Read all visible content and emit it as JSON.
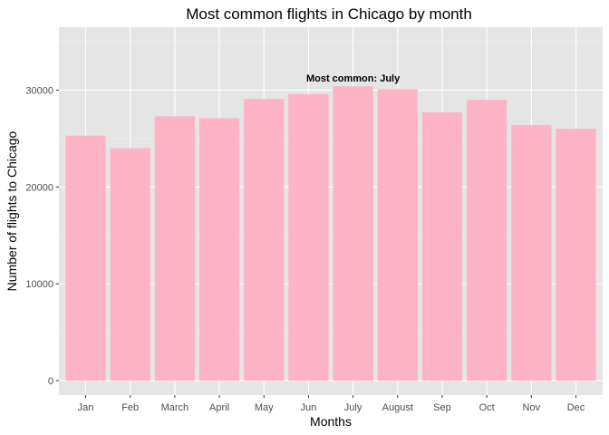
{
  "chart_data": {
    "type": "bar",
    "title": "Most common flights in Chicago by month",
    "xlabel": "Months",
    "ylabel": "Number of flights to Chicago",
    "categories": [
      "Jan",
      "Feb",
      "March",
      "April",
      "May",
      "Jun",
      "July",
      "August",
      "Sep",
      "Oct",
      "Nov",
      "Dec"
    ],
    "values": [
      25300,
      24000,
      27300,
      27100,
      29100,
      29600,
      30400,
      30100,
      27700,
      29000,
      26400,
      26000
    ],
    "ylim": [
      -1500,
      36500
    ],
    "yticks": [
      0,
      10000,
      20000,
      30000
    ],
    "ytick_labels": [
      "0",
      "10000",
      "20000",
      "30000"
    ],
    "annotation": {
      "text": "Most common: July",
      "category": "July",
      "y": 30400
    },
    "grid": true,
    "colors": {
      "bar": "#ffb3c6",
      "panel": "#e5e5e5",
      "grid_major": "#ffffff",
      "grid_minor": "#f2f2f2",
      "tick": "#333333"
    }
  }
}
